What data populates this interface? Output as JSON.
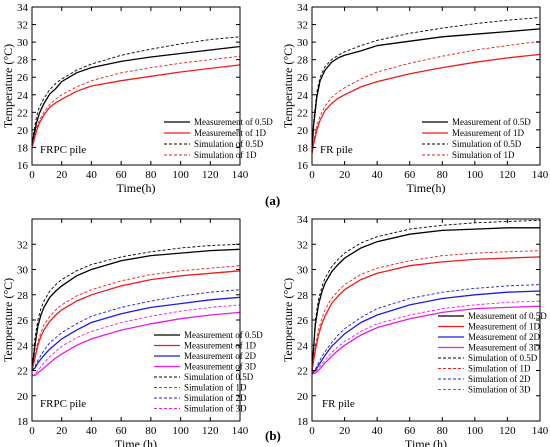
{
  "captions": {
    "a": "(a)",
    "b": "(b)"
  },
  "chart_data": [
    {
      "type": "line",
      "panel_label": "FRPC pile",
      "xlabel": "Time(h)",
      "ylabel": "Temperature (°C)",
      "xlim": [
        0,
        140
      ],
      "ylim": [
        16,
        34
      ],
      "xticks": [
        0,
        20,
        40,
        60,
        80,
        100,
        120,
        140
      ],
      "yticks": [
        16,
        18,
        20,
        22,
        24,
        26,
        28,
        30,
        32,
        34
      ],
      "legend_position": "lower-right",
      "series": [
        {
          "name": "Measurement of 0.5D",
          "style": "solid",
          "color": "#000000",
          "x": [
            0,
            1,
            3,
            5,
            8,
            12,
            16,
            20,
            30,
            40,
            60,
            80,
            100,
            120,
            140
          ],
          "y": [
            18.3,
            19.2,
            20.8,
            21.9,
            23.0,
            24.1,
            24.7,
            25.5,
            26.5,
            27.1,
            27.8,
            28.3,
            28.7,
            29.1,
            29.5
          ]
        },
        {
          "name": "Measurement of 1D",
          "style": "solid",
          "color": "#ee1c1c",
          "x": [
            0,
            1,
            3,
            5,
            8,
            12,
            16,
            20,
            30,
            40,
            60,
            80,
            100,
            120,
            140
          ],
          "y": [
            18.0,
            18.6,
            19.9,
            20.8,
            21.7,
            22.6,
            23.1,
            23.5,
            24.4,
            25.0,
            25.6,
            26.1,
            26.6,
            27.0,
            27.4
          ]
        },
        {
          "name": "Simulation of 0.5D",
          "style": "dashed",
          "color": "#000000",
          "x": [
            0,
            1,
            3,
            5,
            8,
            12,
            16,
            20,
            30,
            40,
            60,
            80,
            100,
            120,
            140
          ],
          "y": [
            18.3,
            19.6,
            21.5,
            22.6,
            23.6,
            24.6,
            25.3,
            25.8,
            26.8,
            27.5,
            28.5,
            29.2,
            29.8,
            30.3,
            30.6
          ]
        },
        {
          "name": "Simulation of 1D",
          "style": "dashed",
          "color": "#ee1c1c",
          "x": [
            0,
            1,
            3,
            5,
            8,
            12,
            16,
            20,
            30,
            40,
            60,
            80,
            100,
            120,
            140
          ],
          "y": [
            18.0,
            18.8,
            20.2,
            21.1,
            22.0,
            22.9,
            23.5,
            24.0,
            24.9,
            25.6,
            26.5,
            27.1,
            27.6,
            28.0,
            28.4
          ]
        }
      ]
    },
    {
      "type": "line",
      "panel_label": "FR pile",
      "xlabel": "Time(h)",
      "ylabel": "Temperature (°C)",
      "xlim": [
        0,
        140
      ],
      "ylim": [
        16,
        34
      ],
      "xticks": [
        0,
        20,
        40,
        60,
        80,
        100,
        120,
        140
      ],
      "yticks": [
        16,
        18,
        20,
        22,
        24,
        26,
        28,
        30,
        32,
        34
      ],
      "legend_position": "lower-right",
      "series": [
        {
          "name": "Measurement of 0.5D",
          "style": "solid",
          "color": "#000000",
          "x": [
            0,
            1,
            3,
            5,
            8,
            12,
            16,
            20,
            30,
            40,
            60,
            80,
            100,
            120,
            140
          ],
          "y": [
            17.5,
            20.5,
            23.8,
            25.6,
            26.8,
            27.7,
            28.2,
            28.5,
            29.0,
            29.6,
            30.1,
            30.6,
            30.9,
            31.2,
            31.5
          ]
        },
        {
          "name": "Measurement of 1D",
          "style": "solid",
          "color": "#ee1c1c",
          "x": [
            0,
            1,
            3,
            5,
            8,
            12,
            16,
            20,
            30,
            40,
            60,
            80,
            100,
            120,
            140
          ],
          "y": [
            17.3,
            18.4,
            20.0,
            21.1,
            22.2,
            23.0,
            23.6,
            24.0,
            24.9,
            25.5,
            26.4,
            27.1,
            27.7,
            28.2,
            28.6
          ]
        },
        {
          "name": "Simulation of 0.5D",
          "style": "dashed",
          "color": "#000000",
          "x": [
            0,
            1,
            3,
            5,
            8,
            12,
            16,
            20,
            30,
            40,
            60,
            80,
            100,
            120,
            140
          ],
          "y": [
            17.5,
            21.0,
            24.3,
            26.0,
            27.2,
            28.0,
            28.5,
            28.9,
            29.6,
            30.2,
            31.0,
            31.6,
            32.1,
            32.5,
            32.8
          ]
        },
        {
          "name": "Simulation of 1D",
          "style": "dashed",
          "color": "#ee1c1c",
          "x": [
            0,
            1,
            3,
            5,
            8,
            12,
            16,
            20,
            30,
            40,
            60,
            80,
            100,
            120,
            140
          ],
          "y": [
            17.3,
            18.7,
            20.5,
            21.6,
            22.7,
            23.7,
            24.3,
            24.8,
            25.8,
            26.6,
            27.6,
            28.4,
            29.1,
            29.6,
            30.1
          ]
        }
      ]
    },
    {
      "type": "line",
      "panel_label": "FRPC  pile",
      "xlabel": "Time (h)",
      "ylabel": "Temperature (°C)",
      "xlim": [
        0,
        140
      ],
      "ylim": [
        18,
        34
      ],
      "xticks": [
        0,
        20,
        40,
        60,
        80,
        100,
        120,
        140
      ],
      "yticks": [
        18,
        20,
        22,
        24,
        26,
        28,
        30,
        32
      ],
      "legend_position": "lower-right",
      "series": [
        {
          "name": "Measurement of 0.5D",
          "style": "solid",
          "color": "#000000",
          "x": [
            0,
            2,
            4,
            6,
            8,
            12,
            16,
            20,
            30,
            40,
            60,
            80,
            100,
            120,
            140
          ],
          "y": [
            22.0,
            24.0,
            25.5,
            26.4,
            27.0,
            27.8,
            28.3,
            28.7,
            29.5,
            30.0,
            30.7,
            31.1,
            31.3,
            31.5,
            31.6
          ]
        },
        {
          "name": "Measurement of 1D",
          "style": "solid",
          "color": "#ee1c1c",
          "x": [
            0,
            2,
            4,
            6,
            8,
            12,
            16,
            20,
            30,
            40,
            60,
            80,
            100,
            120,
            140
          ],
          "y": [
            22.0,
            23.0,
            24.0,
            24.7,
            25.2,
            25.9,
            26.4,
            26.8,
            27.5,
            28.0,
            28.7,
            29.2,
            29.5,
            29.7,
            29.9
          ]
        },
        {
          "name": "Measurement of 2D",
          "style": "solid",
          "color": "#1c1cee",
          "x": [
            0,
            2,
            4,
            6,
            8,
            12,
            16,
            20,
            30,
            40,
            60,
            80,
            100,
            120,
            140
          ],
          "y": [
            22.0,
            22.2,
            22.6,
            22.9,
            23.2,
            23.7,
            24.1,
            24.5,
            25.2,
            25.8,
            26.5,
            27.0,
            27.3,
            27.6,
            27.8
          ]
        },
        {
          "name": "Measurement of 3D",
          "style": "solid",
          "color": "#e81ce8",
          "x": [
            0,
            2,
            4,
            6,
            8,
            12,
            16,
            20,
            30,
            40,
            60,
            80,
            100,
            120,
            140
          ],
          "y": [
            21.6,
            21.6,
            21.8,
            22.0,
            22.2,
            22.6,
            23.0,
            23.3,
            24.0,
            24.5,
            25.2,
            25.7,
            26.1,
            26.4,
            26.6
          ]
        },
        {
          "name": "Simulation of 0.5D",
          "style": "dashed",
          "color": "#000000",
          "x": [
            0,
            2,
            4,
            6,
            8,
            12,
            16,
            20,
            30,
            40,
            60,
            80,
            100,
            120,
            140
          ],
          "y": [
            22.0,
            24.6,
            26.0,
            26.9,
            27.5,
            28.3,
            28.8,
            29.2,
            29.9,
            30.4,
            31.0,
            31.4,
            31.7,
            31.9,
            32.0
          ]
        },
        {
          "name": "Simulation of 1D",
          "style": "dashed",
          "color": "#ee1c1c",
          "x": [
            0,
            2,
            4,
            6,
            8,
            12,
            16,
            20,
            30,
            40,
            60,
            80,
            100,
            120,
            140
          ],
          "y": [
            22.0,
            23.2,
            24.3,
            25.0,
            25.6,
            26.3,
            26.8,
            27.2,
            27.9,
            28.4,
            29.1,
            29.6,
            29.9,
            30.1,
            30.3
          ]
        },
        {
          "name": "Simulation of 2D",
          "style": "dashed",
          "color": "#1c1cee",
          "x": [
            0,
            2,
            4,
            6,
            8,
            12,
            16,
            20,
            30,
            40,
            60,
            80,
            100,
            120,
            140
          ],
          "y": [
            22.0,
            22.3,
            22.8,
            23.2,
            23.6,
            24.2,
            24.6,
            25.0,
            25.7,
            26.3,
            27.0,
            27.5,
            27.9,
            28.2,
            28.4
          ]
        },
        {
          "name": "Simulation of 3D",
          "style": "dashed",
          "color": "#e81ce8",
          "x": [
            0,
            2,
            4,
            6,
            8,
            12,
            16,
            20,
            30,
            40,
            60,
            80,
            100,
            120,
            140
          ],
          "y": [
            21.6,
            21.7,
            22.0,
            22.3,
            22.6,
            23.1,
            23.5,
            23.9,
            24.6,
            25.1,
            25.8,
            26.3,
            26.7,
            27.0,
            27.2
          ]
        }
      ]
    },
    {
      "type": "line",
      "panel_label": "FR  pile",
      "xlabel": "Time (h)",
      "ylabel": "Temperature (°C)",
      "xlim": [
        0,
        140
      ],
      "ylim": [
        18,
        34
      ],
      "xticks": [
        0,
        20,
        40,
        60,
        80,
        100,
        120,
        140
      ],
      "yticks": [
        18,
        20,
        22,
        24,
        26,
        28,
        30,
        32,
        34
      ],
      "legend_position": "lower-right",
      "series": [
        {
          "name": "Measurement of 0.5D",
          "style": "solid",
          "color": "#000000",
          "x": [
            0,
            2,
            4,
            6,
            8,
            12,
            16,
            20,
            30,
            40,
            60,
            80,
            100,
            120,
            140
          ],
          "y": [
            22.0,
            25.6,
            27.2,
            28.2,
            28.9,
            29.8,
            30.4,
            30.9,
            31.7,
            32.2,
            32.8,
            33.1,
            33.2,
            33.3,
            33.3
          ]
        },
        {
          "name": "Measurement of 1D",
          "style": "solid",
          "color": "#ee1c1c",
          "x": [
            0,
            2,
            4,
            6,
            8,
            12,
            16,
            20,
            30,
            40,
            60,
            80,
            100,
            120,
            140
          ],
          "y": [
            22.0,
            23.6,
            24.8,
            25.7,
            26.3,
            27.3,
            27.9,
            28.4,
            29.2,
            29.7,
            30.3,
            30.6,
            30.8,
            30.9,
            31.0
          ]
        },
        {
          "name": "Measurement of 2D",
          "style": "solid",
          "color": "#1c1cee",
          "x": [
            0,
            2,
            4,
            6,
            8,
            12,
            16,
            20,
            30,
            40,
            60,
            80,
            100,
            120,
            140
          ],
          "y": [
            21.8,
            22.0,
            22.4,
            22.8,
            23.2,
            23.9,
            24.4,
            24.9,
            25.8,
            26.4,
            27.2,
            27.7,
            28.0,
            28.2,
            28.3
          ]
        },
        {
          "name": "Measurement of 3D",
          "style": "solid",
          "color": "#e81ce8",
          "x": [
            0,
            2,
            4,
            6,
            8,
            12,
            16,
            20,
            30,
            40,
            60,
            80,
            100,
            120,
            140
          ],
          "y": [
            21.7,
            21.8,
            22.0,
            22.3,
            22.6,
            23.1,
            23.6,
            24.0,
            24.8,
            25.4,
            26.1,
            26.6,
            26.9,
            27.0,
            27.1
          ]
        },
        {
          "name": "Simulation of 0.5D",
          "style": "dashed",
          "color": "#000000",
          "x": [
            0,
            2,
            4,
            6,
            8,
            12,
            16,
            20,
            30,
            40,
            60,
            80,
            100,
            120,
            140
          ],
          "y": [
            22.0,
            26.0,
            27.6,
            28.6,
            29.3,
            30.2,
            30.8,
            31.3,
            32.1,
            32.6,
            33.2,
            33.5,
            33.7,
            33.8,
            33.9
          ]
        },
        {
          "name": "Simulation of 1D",
          "style": "dashed",
          "color": "#ee1c1c",
          "x": [
            0,
            2,
            4,
            6,
            8,
            12,
            16,
            20,
            30,
            40,
            60,
            80,
            100,
            120,
            140
          ],
          "y": [
            22.0,
            23.9,
            25.2,
            26.1,
            26.8,
            27.7,
            28.3,
            28.8,
            29.6,
            30.1,
            30.7,
            31.1,
            31.3,
            31.4,
            31.5
          ]
        },
        {
          "name": "Simulation of 2D",
          "style": "dashed",
          "color": "#1c1cee",
          "x": [
            0,
            2,
            4,
            6,
            8,
            12,
            16,
            20,
            30,
            40,
            60,
            80,
            100,
            120,
            140
          ],
          "y": [
            21.8,
            22.1,
            22.6,
            23.1,
            23.5,
            24.2,
            24.8,
            25.3,
            26.2,
            26.9,
            27.7,
            28.2,
            28.5,
            28.7,
            28.8
          ]
        },
        {
          "name": "Simulation of 3D",
          "style": "dashed",
          "color": "#e81ce8",
          "x": [
            0,
            2,
            4,
            6,
            8,
            12,
            16,
            20,
            30,
            40,
            60,
            80,
            100,
            120,
            140
          ],
          "y": [
            21.7,
            21.9,
            22.2,
            22.5,
            22.8,
            23.4,
            23.9,
            24.3,
            25.1,
            25.7,
            26.4,
            26.9,
            27.2,
            27.4,
            27.5
          ]
        }
      ]
    }
  ]
}
